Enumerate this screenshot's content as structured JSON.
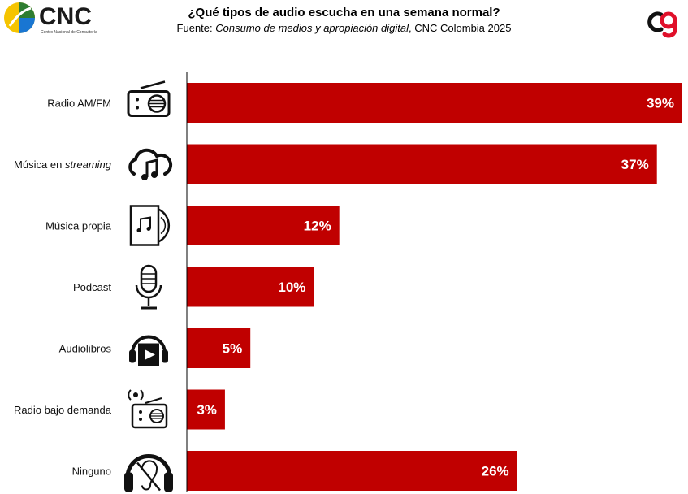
{
  "header": {
    "logo_text": "CNC",
    "logo_subtext": "Centro Nacional de Consultoría",
    "title": "¿Qué tipos de audio escucha en una semana normal?",
    "source_prefix": "Fuente: ",
    "source_italic": "Consumo de medios y apropiación digital",
    "source_suffix": ", CNC Colombia 2025"
  },
  "colors": {
    "bar": "#c00000",
    "axis": "#000000",
    "text": "#111111"
  },
  "chart_data": {
    "type": "bar",
    "orientation": "horizontal",
    "title": "¿Qué tipos de audio escucha en una semana normal?",
    "categories": [
      "Radio AM/FM",
      "Música en streaming",
      "Música propia",
      "Podcast",
      "Audiolibros",
      "Radio bajo demanda",
      "Ninguno"
    ],
    "icons": [
      "radio-icon",
      "cloud-music-icon",
      "music-album-icon",
      "microphone-icon",
      "audiobook-headphones-icon",
      "radio-signal-icon",
      "headphones-crossed-ear-icon"
    ],
    "values": [
      39,
      37,
      12,
      10,
      5,
      3,
      26
    ],
    "value_labels": [
      "39%",
      "37%",
      "12%",
      "10%",
      "5%",
      "3%",
      "26%"
    ],
    "xlim": [
      0,
      39
    ],
    "grid": false,
    "legend": "none"
  }
}
